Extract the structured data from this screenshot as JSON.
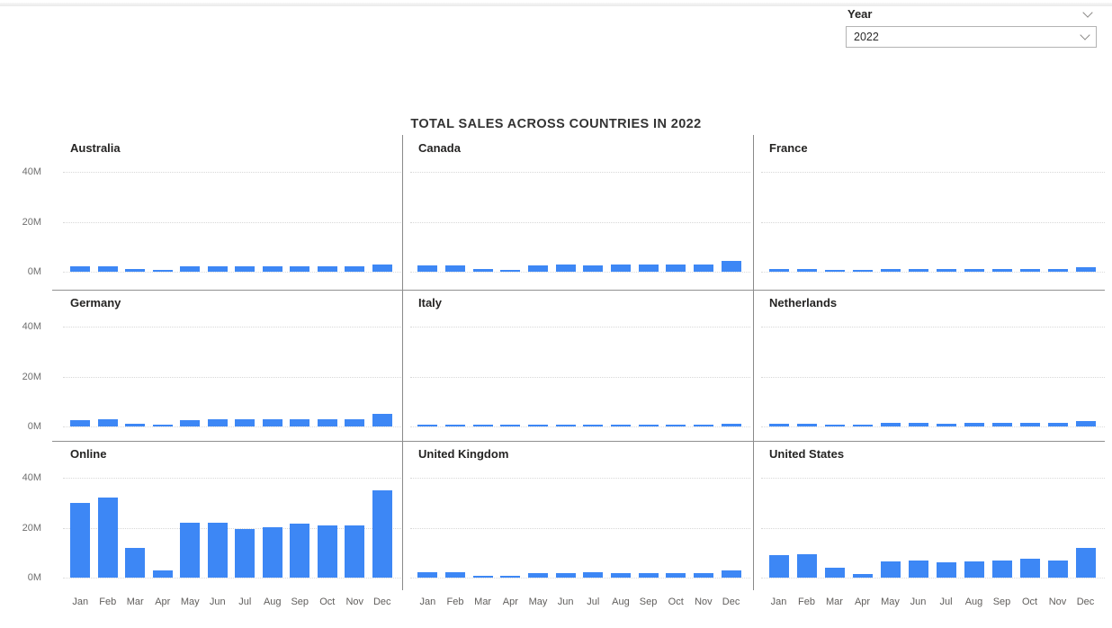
{
  "slicer": {
    "title": "Year",
    "value": "2022"
  },
  "chart_data": {
    "type": "bar",
    "title": "TOTAL SALES ACROSS COUNTRIES IN 2022",
    "categories": [
      "Jan",
      "Feb",
      "Mar",
      "Apr",
      "May",
      "Jun",
      "Jul",
      "Aug",
      "Sep",
      "Oct",
      "Nov",
      "Dec"
    ],
    "y_tick_labels": [
      "40M",
      "20M",
      "0M"
    ],
    "ylim": [
      0,
      48
    ],
    "unit": "millions",
    "bar_color": "#3d87f5",
    "grid": "dotted horizontal lines at 20M and 40M",
    "legend_position": "none",
    "layout": "3x3 small multiples",
    "series": [
      {
        "name": "Australia",
        "values": [
          2,
          2.2,
          1,
          0.6,
          2,
          2,
          2,
          2,
          2.2,
          2.2,
          2.2,
          3
        ]
      },
      {
        "name": "Canada",
        "values": [
          2.5,
          2.5,
          1.2,
          0.7,
          2.5,
          2.8,
          2.5,
          2.8,
          2.8,
          3,
          2.8,
          4.5
        ]
      },
      {
        "name": "France",
        "values": [
          1,
          1.2,
          0.5,
          0.4,
          1,
          1,
          1.2,
          1,
          1,
          1.2,
          1,
          1.8
        ]
      },
      {
        "name": "Germany",
        "values": [
          2.5,
          2.8,
          1.2,
          0.6,
          2.5,
          2.8,
          2.8,
          2.8,
          3,
          3,
          3,
          5
        ]
      },
      {
        "name": "Italy",
        "values": [
          0.7,
          0.7,
          0.6,
          0.6,
          0.7,
          0.7,
          0.7,
          0.7,
          0.8,
          0.8,
          0.8,
          1.2
        ]
      },
      {
        "name": "Netherlands",
        "values": [
          1.2,
          1.2,
          0.6,
          0.7,
          1.3,
          1.3,
          1.2,
          1.3,
          1.3,
          1.5,
          1.4,
          2.2
        ]
      },
      {
        "name": "Online",
        "values": [
          30,
          32,
          12,
          3,
          22,
          22,
          19.5,
          20,
          21.5,
          21,
          21,
          35
        ]
      },
      {
        "name": "United Kingdom",
        "values": [
          2,
          2.2,
          0.8,
          0.6,
          1.8,
          1.8,
          2,
          1.8,
          1.8,
          1.8,
          1.8,
          3
        ]
      },
      {
        "name": "United States",
        "values": [
          9,
          9.5,
          4,
          1.3,
          6.5,
          7,
          6,
          6.5,
          7,
          7.5,
          7,
          12
        ]
      }
    ]
  }
}
